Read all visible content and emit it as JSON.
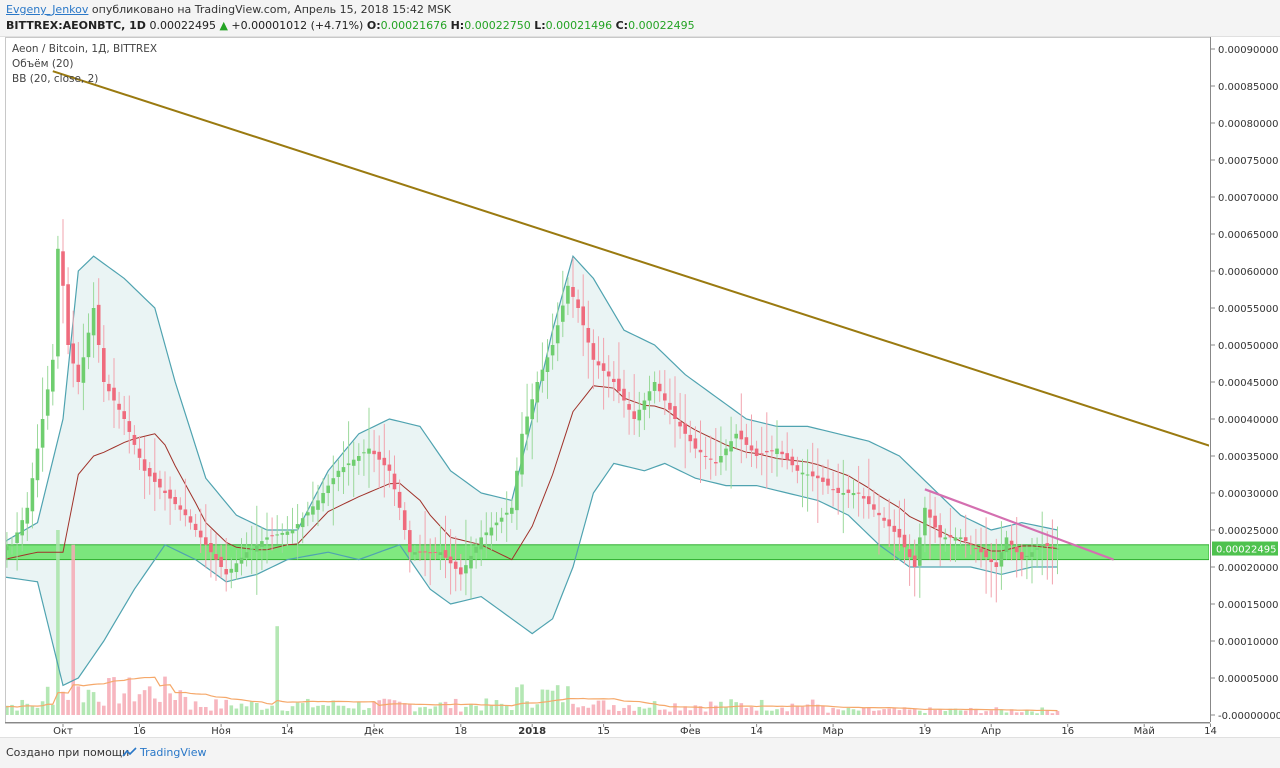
{
  "header": {
    "author": "Evgeny_Jenkov",
    "published_text": "опубликовано на TradingView.com, Апрель 15, 2018 15:42 MSK",
    "symbol": "BITTREX:AEONBTC, 1D",
    "last": "0.00022495",
    "change_arrow": "▲",
    "change": "+0.00001012 (+4.71%)",
    "open_label": "O:",
    "open": "0.00021676",
    "high_label": "H:",
    "high": "0.00022750",
    "low_label": "L:",
    "low": "0.00021496",
    "close_label": "C:",
    "close": "0.00022495"
  },
  "overlay": {
    "title": "Aeon / Bitcoin, 1Д, BITTREX",
    "volume_label": "Объём (20)",
    "bb_label": "BB (20, close, 2)"
  },
  "footer": {
    "made_with": "Создано при помощи",
    "brand": "TradingView"
  },
  "colors": {
    "up": "#6fce6f",
    "down": "#ef6b7d",
    "bb_band": "#4fa3b0",
    "bb_basis": "#a0322a",
    "bb_fill": "#eaf4f4",
    "trendline_main": "#9a7a10",
    "trendline_short": "#d46fb0",
    "support_zone": "#56e156",
    "volume_ma": "#f5a86a"
  },
  "chart_data": {
    "type": "candlestick",
    "symbol": "AEONBTC",
    "timeframe": "1D",
    "y_range": [
      -5e-08,
      0.00093
    ],
    "y_ticks": [
      "0.00090000",
      "0.00085000",
      "0.00080000",
      "0.00075000",
      "0.00070000",
      "0.00065000",
      "0.00060000",
      "0.00055000",
      "0.00050000",
      "0.00045000",
      "0.00040000",
      "0.00035000",
      "0.00030000",
      "0.00025000",
      "0.00020000",
      "0.00015000",
      "0.00010000",
      "0.00005000",
      "-0.00000000"
    ],
    "y_tick_values": [
      0.0009,
      0.00085,
      0.0008,
      0.00075,
      0.0007,
      0.00065,
      0.0006,
      0.00055,
      0.0005,
      0.00045,
      0.0004,
      0.00035,
      0.0003,
      0.00025,
      0.0002,
      0.00015,
      0.0001,
      5e-05,
      0
    ],
    "last_price_label": "0.00022495",
    "last_price": 0.00022495,
    "x_ticks": [
      {
        "label": "Окт",
        "day": 0
      },
      {
        "label": "16",
        "day": 15
      },
      {
        "label": "Ноя",
        "day": 31
      },
      {
        "label": "14",
        "day": 44
      },
      {
        "label": "Дек",
        "day": 61
      },
      {
        "label": "18",
        "day": 78
      },
      {
        "label": "2018",
        "day": 92,
        "bold": true
      },
      {
        "label": "15",
        "day": 106
      },
      {
        "label": "Фев",
        "day": 123
      },
      {
        "label": "14",
        "day": 136
      },
      {
        "label": "Мар",
        "day": 151
      },
      {
        "label": "19",
        "day": 169
      },
      {
        "label": "Апр",
        "day": 182
      },
      {
        "label": "16",
        "day": 197
      },
      {
        "label": "Май",
        "day": 212
      },
      {
        "label": "14",
        "day": 225
      }
    ],
    "price_anchors": [
      {
        "day": -15,
        "close": 0.00022
      },
      {
        "day": -10,
        "close": 0.00023
      },
      {
        "day": -7,
        "close": 0.00028
      },
      {
        "day": -4,
        "close": 0.0004
      },
      {
        "day": -2,
        "close": 0.00048
      },
      {
        "day": -1,
        "close": 0.00063
      },
      {
        "day": 0,
        "close": 0.00058
      },
      {
        "day": 1,
        "close": 0.0005
      },
      {
        "day": 3,
        "close": 0.00045
      },
      {
        "day": 6,
        "close": 0.00055
      },
      {
        "day": 8,
        "close": 0.00045
      },
      {
        "day": 12,
        "close": 0.0004
      },
      {
        "day": 16,
        "close": 0.00033
      },
      {
        "day": 20,
        "close": 0.0003
      },
      {
        "day": 24,
        "close": 0.00027
      },
      {
        "day": 28,
        "close": 0.00023
      },
      {
        "day": 32,
        "close": 0.00019
      },
      {
        "day": 36,
        "close": 0.00022
      },
      {
        "day": 40,
        "close": 0.00024
      },
      {
        "day": 45,
        "close": 0.00025
      },
      {
        "day": 50,
        "close": 0.00029
      },
      {
        "day": 54,
        "close": 0.00033
      },
      {
        "day": 60,
        "close": 0.00036
      },
      {
        "day": 64,
        "close": 0.00033
      },
      {
        "day": 66,
        "close": 0.00028
      },
      {
        "day": 68,
        "close": 0.00022
      },
      {
        "day": 74,
        "close": 0.00022
      },
      {
        "day": 78,
        "close": 0.00019
      },
      {
        "day": 82,
        "close": 0.00024
      },
      {
        "day": 88,
        "close": 0.00028
      },
      {
        "day": 90,
        "close": 0.00038
      },
      {
        "day": 93,
        "close": 0.00045
      },
      {
        "day": 96,
        "close": 0.0005
      },
      {
        "day": 99,
        "close": 0.00058
      },
      {
        "day": 101,
        "close": 0.00055
      },
      {
        "day": 104,
        "close": 0.00048
      },
      {
        "day": 108,
        "close": 0.00045
      },
      {
        "day": 112,
        "close": 0.0004
      },
      {
        "day": 116,
        "close": 0.00045
      },
      {
        "day": 120,
        "close": 0.0004
      },
      {
        "day": 124,
        "close": 0.00036
      },
      {
        "day": 128,
        "close": 0.00034
      },
      {
        "day": 132,
        "close": 0.00038
      },
      {
        "day": 136,
        "close": 0.00035
      },
      {
        "day": 140,
        "close": 0.00036
      },
      {
        "day": 144,
        "close": 0.00033
      },
      {
        "day": 148,
        "close": 0.00032
      },
      {
        "day": 152,
        "close": 0.0003
      },
      {
        "day": 156,
        "close": 0.0003
      },
      {
        "day": 160,
        "close": 0.00027
      },
      {
        "day": 164,
        "close": 0.00024
      },
      {
        "day": 167,
        "close": 0.0002
      },
      {
        "day": 169,
        "close": 0.00028
      },
      {
        "day": 172,
        "close": 0.00024
      },
      {
        "day": 176,
        "close": 0.00024
      },
      {
        "day": 180,
        "close": 0.00022
      },
      {
        "day": 183,
        "close": 0.0002
      },
      {
        "day": 185,
        "close": 0.00024
      },
      {
        "day": 188,
        "close": 0.00021
      },
      {
        "day": 192,
        "close": 0.00023
      },
      {
        "day": 195,
        "close": 0.00022495
      }
    ],
    "bb_upper": [
      [
        -15,
        0.00022
      ],
      [
        -5,
        0.00026
      ],
      [
        0,
        0.0004
      ],
      [
        3,
        0.0006
      ],
      [
        6,
        0.00062
      ],
      [
        12,
        0.00059
      ],
      [
        18,
        0.00055
      ],
      [
        22,
        0.00045
      ],
      [
        28,
        0.00032
      ],
      [
        34,
        0.00027
      ],
      [
        40,
        0.00025
      ],
      [
        46,
        0.00025
      ],
      [
        52,
        0.00033
      ],
      [
        58,
        0.00038
      ],
      [
        64,
        0.0004
      ],
      [
        70,
        0.00039
      ],
      [
        76,
        0.00033
      ],
      [
        82,
        0.0003
      ],
      [
        88,
        0.00029
      ],
      [
        92,
        0.0004
      ],
      [
        96,
        0.00052
      ],
      [
        100,
        0.00062
      ],
      [
        104,
        0.00059
      ],
      [
        110,
        0.00052
      ],
      [
        116,
        0.0005
      ],
      [
        122,
        0.00046
      ],
      [
        128,
        0.00043
      ],
      [
        134,
        0.0004
      ],
      [
        140,
        0.00039
      ],
      [
        146,
        0.00039
      ],
      [
        152,
        0.00038
      ],
      [
        158,
        0.00037
      ],
      [
        164,
        0.00035
      ],
      [
        170,
        0.00031
      ],
      [
        176,
        0.00027
      ],
      [
        182,
        0.00025
      ],
      [
        188,
        0.00026
      ],
      [
        195,
        0.00025
      ]
    ],
    "bb_lower": [
      [
        -15,
        0.00019
      ],
      [
        -5,
        0.00018
      ],
      [
        0,
        4e-05
      ],
      [
        3,
        5e-05
      ],
      [
        8,
        0.0001
      ],
      [
        14,
        0.00017
      ],
      [
        20,
        0.00023
      ],
      [
        26,
        0.00021
      ],
      [
        32,
        0.00018
      ],
      [
        38,
        0.00019
      ],
      [
        44,
        0.00021
      ],
      [
        52,
        0.00022
      ],
      [
        58,
        0.00021
      ],
      [
        62,
        0.00022
      ],
      [
        66,
        0.00023
      ],
      [
        72,
        0.00017
      ],
      [
        76,
        0.00015
      ],
      [
        82,
        0.00016
      ],
      [
        88,
        0.00013
      ],
      [
        92,
        0.00011
      ],
      [
        96,
        0.00013
      ],
      [
        100,
        0.0002
      ],
      [
        104,
        0.0003
      ],
      [
        108,
        0.00034
      ],
      [
        114,
        0.00033
      ],
      [
        118,
        0.00034
      ],
      [
        124,
        0.00032
      ],
      [
        130,
        0.00031
      ],
      [
        136,
        0.00031
      ],
      [
        142,
        0.0003
      ],
      [
        148,
        0.00029
      ],
      [
        154,
        0.00027
      ],
      [
        160,
        0.00023
      ],
      [
        166,
        0.0002
      ],
      [
        172,
        0.0002
      ],
      [
        178,
        0.0002
      ],
      [
        184,
        0.00019
      ],
      [
        190,
        0.0002
      ],
      [
        195,
        0.0002
      ]
    ],
    "trendline_main": {
      "from": {
        "day": -2,
        "price": 0.00087
      },
      "to": {
        "day": 231,
        "price": 0.00035
      }
    },
    "trendline_short": {
      "from": {
        "day": 169,
        "price": 0.000305
      },
      "to": {
        "day": 206,
        "price": 0.00021
      }
    },
    "support_zone": {
      "day_start": -15,
      "day_end": 231,
      "price_low": 0.00021,
      "price_high": 0.00023
    },
    "volume_spikes": [
      {
        "day": -1,
        "value": 0.00025
      },
      {
        "day": 2,
        "value": 0.00023
      },
      {
        "day": 42,
        "value": 0.00012
      }
    ]
  }
}
